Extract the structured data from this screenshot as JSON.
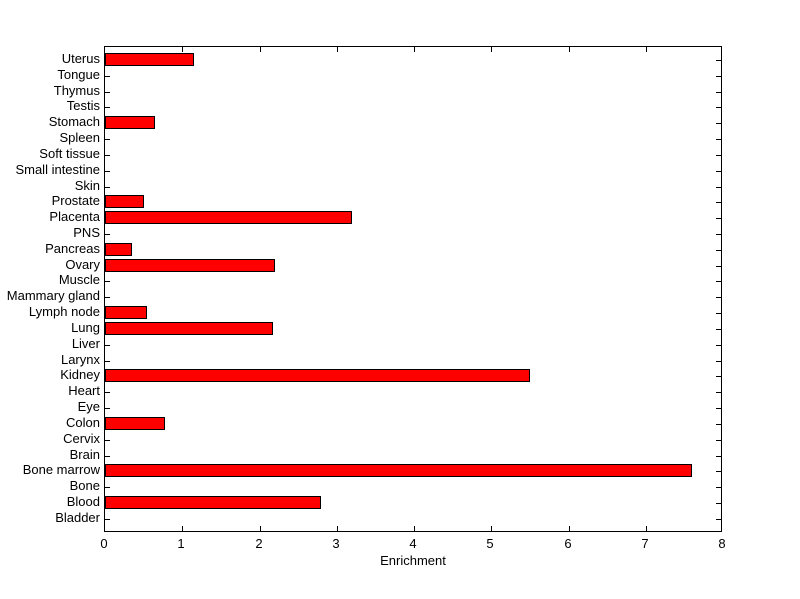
{
  "chart_data": {
    "type": "bar",
    "orientation": "horizontal",
    "title": "",
    "xlabel": "Enrichment",
    "ylabel": "",
    "xlim": [
      0,
      8
    ],
    "xticks": [
      0,
      1,
      2,
      3,
      4,
      5,
      6,
      7,
      8
    ],
    "grid": false,
    "legend": null,
    "categories": [
      "Uterus",
      "Tongue",
      "Thymus",
      "Testis",
      "Stomach",
      "Spleen",
      "Soft tissue",
      "Small intestine",
      "Skin",
      "Prostate",
      "Placenta",
      "PNS",
      "Pancreas",
      "Ovary",
      "Muscle",
      "Mammary gland",
      "Lymph node",
      "Lung",
      "Liver",
      "Larynx",
      "Kidney",
      "Heart",
      "Eye",
      "Colon",
      "Cervix",
      "Brain",
      "Bone marrow",
      "Bone",
      "Blood",
      "Bladder"
    ],
    "values": [
      1.15,
      0,
      0,
      0,
      0.65,
      0,
      0,
      0,
      0,
      0.5,
      3.2,
      0,
      0.35,
      2.2,
      0,
      0,
      0.55,
      2.18,
      0,
      0,
      5.5,
      0,
      0,
      0.78,
      0,
      0,
      7.6,
      0,
      2.8,
      0
    ],
    "bar_color": "#ff0000",
    "bar_edge_color": "#000000",
    "axis_color": "#000000",
    "background_color": "#ffffff"
  }
}
